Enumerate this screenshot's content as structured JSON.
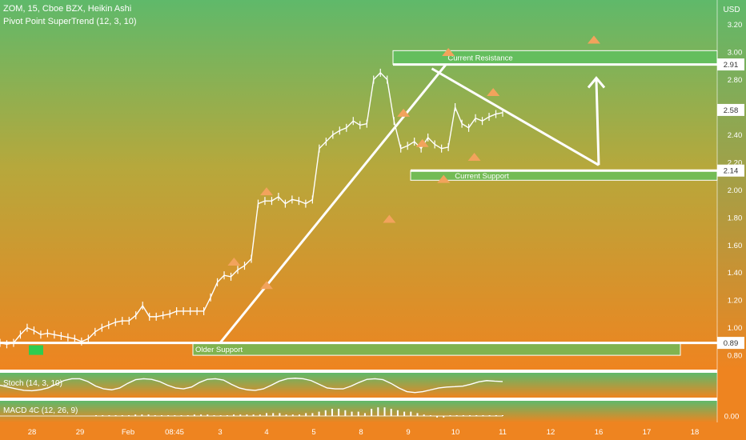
{
  "header": {
    "title": "ZOM, 15, Cboe BZX, Heikin Ashi",
    "indicator": "Pivot Point SuperTrend (12, 3, 10)"
  },
  "colors": {
    "bg_top": "#5fb96a",
    "bg_bottom": "#ee8420",
    "drawing": "#ffffff",
    "zone_fill": "#5cc25f",
    "arrow_up": "#f2a35c",
    "start_marker": "#2ecc4f"
  },
  "chart_data": [
    {
      "type": "line",
      "title": "",
      "xlabel": "",
      "ylabel": "",
      "y_unit": "USD",
      "ylim": [
        0.71,
        3.3
      ],
      "x_tick_labels": [
        "28",
        "29",
        "Feb",
        "08:45",
        "3",
        "4",
        "5",
        "8",
        "9",
        "10",
        "11",
        "12",
        "16",
        "17",
        "18"
      ],
      "y_tick_labels": [
        "3.20",
        "3.00",
        "2.80",
        "2.40",
        "2.20",
        "2.00",
        "1.80",
        "1.60",
        "1.40",
        "1.20",
        "1.00",
        "0.80"
      ],
      "price_badges": [
        "2.91",
        "2.58",
        "2.14",
        "0.89"
      ],
      "series": [
        {
          "values": [
            0.89,
            0.88,
            0.89,
            0.95,
            1.0,
            0.98,
            0.95,
            0.96,
            0.95,
            0.94,
            0.93,
            0.92,
            0.9,
            0.92,
            0.97,
            1.0,
            1.02,
            1.04,
            1.05,
            1.05,
            1.09,
            1.16,
            1.08,
            1.08,
            1.09,
            1.1,
            1.12,
            1.12,
            1.12,
            1.12,
            1.12,
            1.22,
            1.33,
            1.38,
            1.37,
            1.42,
            1.45,
            1.5,
            1.9,
            1.92,
            1.92,
            1.95,
            1.9,
            1.93,
            1.92,
            1.9,
            1.93,
            2.3,
            2.35,
            2.4,
            2.43,
            2.45,
            2.5,
            2.47,
            2.48,
            2.8,
            2.85,
            2.8,
            2.5,
            2.3,
            2.32,
            2.35,
            2.3,
            2.38,
            2.33,
            2.3,
            2.31,
            2.6,
            2.48,
            2.45,
            2.52,
            2.5,
            2.53,
            2.55,
            2.56
          ]
        }
      ],
      "annotations": {
        "resistance_label": "Current Resistance",
        "support_label": "Current Support",
        "older_support_label": "Older Support",
        "resistance_zone": [
          2.91,
          3.01
        ],
        "support_zone": [
          2.14,
          2.07
        ],
        "older_support_zone": [
          0.89,
          0.8
        ],
        "horizontal_levels": [
          2.91,
          2.14,
          0.89
        ],
        "rising_trendline": [
          [
            4,
            0.89
          ],
          [
            8.8,
            2.91
          ]
        ],
        "falling_trendline": [
          [
            8.5,
            2.88
          ],
          [
            12,
            2.18
          ]
        ],
        "projection_arrow": [
          [
            11.95,
            2.2
          ],
          [
            11.95,
            2.8
          ]
        ]
      },
      "supertrend_up_markers": [
        [
          4.3,
          1.48
        ],
        [
          5,
          1.99
        ],
        [
          7.9,
          2.56
        ],
        [
          8.85,
          3.0
        ],
        [
          9.8,
          2.71
        ],
        [
          11.9,
          3.09
        ]
      ],
      "supertrend_down_markers": [
        [
          5,
          1.31
        ],
        [
          7.6,
          1.79
        ],
        [
          8.3,
          2.34
        ],
        [
          8.75,
          2.08
        ],
        [
          9.4,
          2.24
        ]
      ]
    },
    {
      "type": "line",
      "title": "Stoch (14, 3, 10)",
      "ylim": [
        0,
        100
      ],
      "series": [
        {
          "values": [
            50,
            40,
            30,
            22,
            20,
            25,
            35,
            55,
            75,
            85,
            85,
            70,
            45,
            30,
            25,
            35,
            60,
            80,
            85,
            82,
            70,
            50,
            35,
            30,
            40,
            65,
            82,
            85,
            78,
            55,
            35,
            25,
            22,
            30,
            50,
            72,
            85,
            88,
            85,
            75,
            55,
            35,
            30,
            30,
            45,
            65,
            82,
            85,
            80,
            60,
            35,
            15,
            10,
            15,
            25,
            35,
            40,
            42,
            45,
            55,
            68,
            75,
            72,
            70
          ]
        }
      ]
    },
    {
      "type": "bar",
      "title": "MACD 4C (12, 26, 9)",
      "y_tick_labels": [
        "0.00"
      ],
      "series": [
        {
          "values": [
            0,
            0,
            0,
            0,
            0,
            0,
            0.01,
            0.01,
            0.01,
            0,
            0,
            0,
            0,
            0,
            0,
            0.01,
            0.01,
            0.01,
            0,
            0,
            0,
            0.01,
            0.01,
            0.01,
            0.01,
            0.01,
            0.02,
            0.02,
            0.02,
            0.01,
            0.01,
            0.01,
            0.02,
            0.02,
            0.03,
            0.04,
            0.05,
            0.05,
            0.04,
            0.03,
            0.03,
            0.02,
            0.05,
            0.06,
            0.06,
            0.05,
            0.04,
            0.03,
            0.03,
            0.02,
            0.01,
            0,
            -0.01,
            -0.01,
            0,
            0,
            0,
            0,
            0,
            0,
            0,
            0,
            0
          ]
        }
      ]
    }
  ]
}
